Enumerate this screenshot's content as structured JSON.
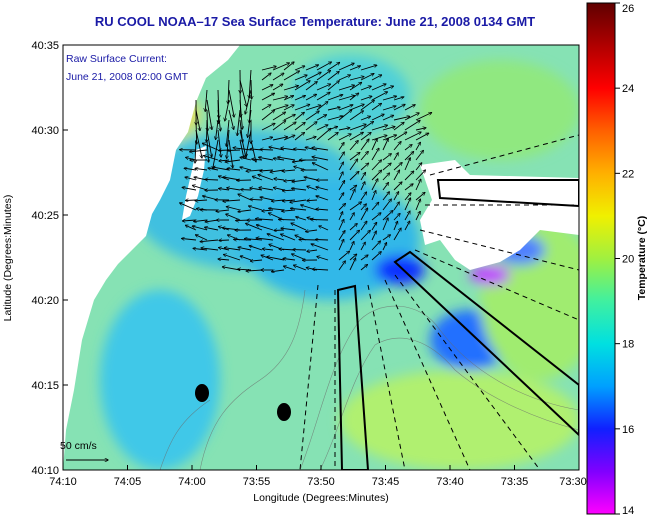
{
  "title": "RU COOL  NOAA–17  Sea Surface Temperature:  June 21, 2008 0134 GMT",
  "current_note": {
    "line1": "Raw Surface Current:",
    "line2": "June 21, 2008 02:00 GMT"
  },
  "scale_label": "50 cm/s",
  "x_axis": {
    "label": "Longitude (Degrees:Minutes)",
    "ticks": [
      "74:10",
      "74:05",
      "74:00",
      "73:55",
      "73:50",
      "73:45",
      "73:40",
      "73:35",
      "73:30"
    ]
  },
  "y_axis": {
    "label": "Latitude (Degrees:Minutes)",
    "ticks": [
      "40:35",
      "40:30",
      "40:25",
      "40:20",
      "40:15",
      "40:10"
    ]
  },
  "colorbar": {
    "label": "Temperature (°C)",
    "ticks": [
      "26",
      "24",
      "22",
      "20",
      "18",
      "16",
      "14"
    ],
    "range": [
      14,
      26
    ],
    "colors": [
      "#ff00ff",
      "#8000ff",
      "#1020ff",
      "#00a0ff",
      "#00e0e0",
      "#40f0a0",
      "#a0f040",
      "#f0f000",
      "#ffb000",
      "#ff6000",
      "#ff0000",
      "#b00000",
      "#600000"
    ]
  },
  "colors": {
    "land": "#ffffff",
    "ocean_base": "#7ee6c0",
    "title_text": "#1a1aa6"
  }
}
